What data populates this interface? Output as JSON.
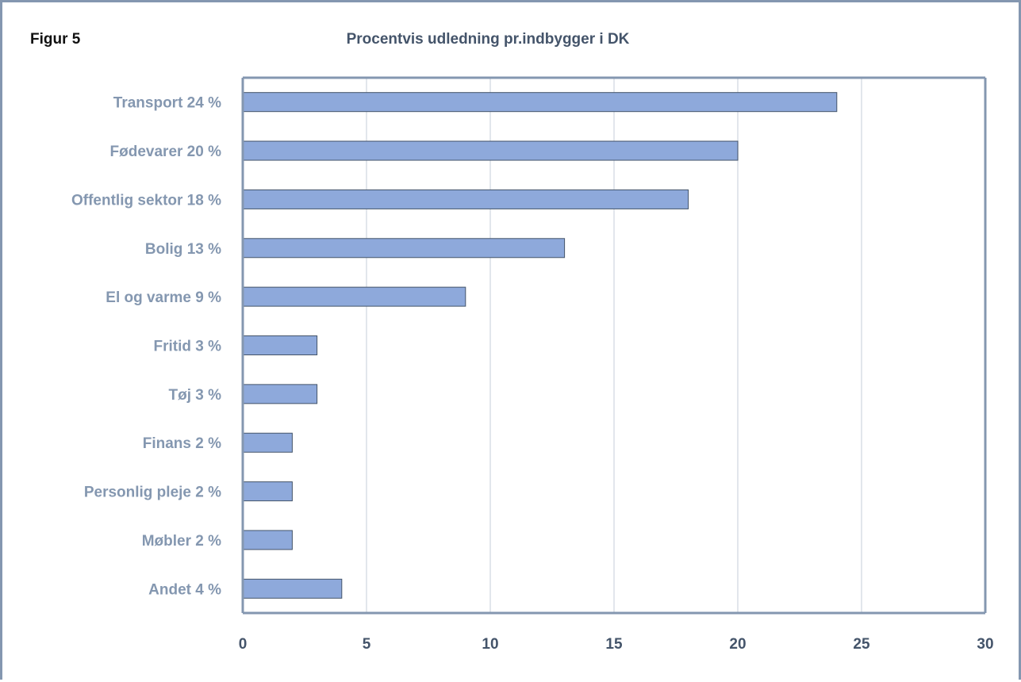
{
  "figure_label": "Figur 5",
  "chart_data": {
    "type": "bar",
    "orientation": "horizontal",
    "title": "Procentvis udledning pr.indbygger i DK",
    "categories": [
      "Transport 24 %",
      "Fødevarer 20 %",
      "Offentlig sektor 18 %",
      "Bolig 13 %",
      "El og varme 9 %",
      "Fritid 3 %",
      "Tøj 3 %",
      "Finans 2 %",
      "Personlig pleje 2 %",
      "Møbler 2 %",
      "Andet 4 %"
    ],
    "values": [
      24,
      20,
      18,
      13,
      9,
      3,
      3,
      2,
      2,
      2,
      4
    ],
    "xlim": [
      0,
      30
    ],
    "xticks": [
      0,
      5,
      10,
      15,
      20,
      25,
      30
    ],
    "xlabel": "",
    "ylabel": "",
    "grid": "vertical",
    "legend": "none",
    "colors": {
      "bar_fill": "#8EA9DB",
      "bar_stroke": "#44546A",
      "axis": "#8497B0",
      "grid": "#D9DDE5",
      "frame": "#8497B0",
      "category_text": "#8497B0",
      "tick_text": "#44546A",
      "title_text": "#44546A"
    }
  }
}
